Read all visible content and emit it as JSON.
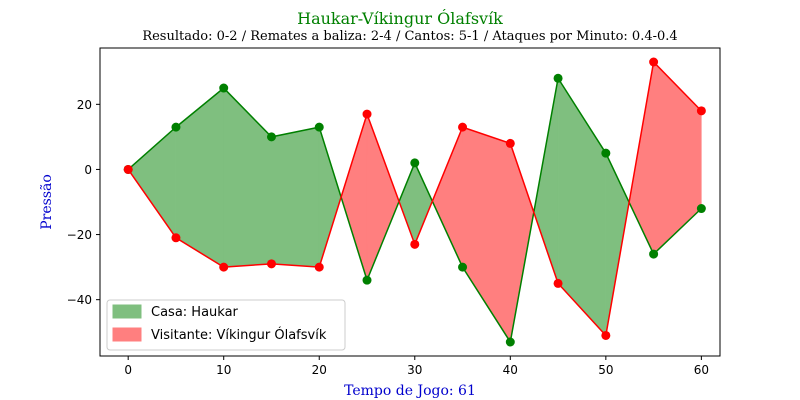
{
  "chart_data": {
    "type": "line",
    "title": "Haukar-Víkingur Ólafsvík",
    "subtitle": "Resultado: 0-2 / Remates a baliza: 2-4 / Cantos: 5-1 / Ataques por Minuto: 0.4-0.4",
    "xlabel": "Tempo de Jogo: 61",
    "ylabel": "Pressão",
    "xlim": [
      -2.95,
      61.95
    ],
    "ylim": [
      -57.3,
      37.3
    ],
    "x_ticks": [
      0,
      10,
      20,
      30,
      40,
      50,
      60
    ],
    "y_ticks": [
      -40,
      -20,
      0,
      20
    ],
    "legend_position": "lower-left",
    "grid": false,
    "x": [
      0,
      5,
      10,
      15,
      20,
      25,
      30,
      35,
      40,
      45,
      50,
      55,
      60
    ],
    "series": [
      {
        "name": "Casa: Haukar",
        "color": "#008000",
        "fill_color": "#7fbf7f",
        "values": [
          0,
          13,
          25,
          10,
          13,
          -34,
          2,
          -30,
          -53,
          28,
          5,
          -26,
          -12
        ]
      },
      {
        "name": "Visitante: Víkingur Ólafsvík",
        "color": "#ff0000",
        "fill_color": "#ff7f7f",
        "values": [
          0,
          -21,
          -30,
          -29,
          -30,
          17,
          -23,
          13,
          8,
          -35,
          -51,
          33,
          18
        ]
      }
    ]
  }
}
